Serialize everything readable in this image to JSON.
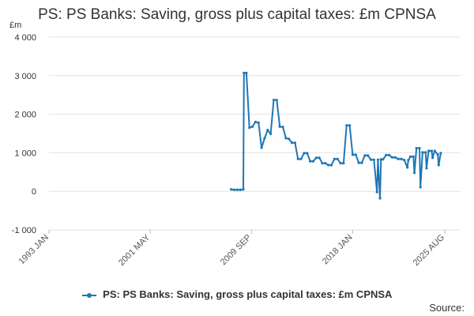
{
  "chart_data": {
    "type": "line",
    "title": "PS: PS Banks: Saving, gross plus capital taxes: £m CPNSA",
    "ylabel": "£m",
    "ylim": [
      -1000,
      4000
    ],
    "yticks": [
      -1000,
      0,
      1000,
      2000,
      3000,
      4000
    ],
    "ytick_labels": [
      "-1 000",
      "0",
      "1 000",
      "2 000",
      "3 000",
      "4 000"
    ],
    "xlim": [
      1993.0,
      2025.58
    ],
    "xticks": [
      1993.0,
      2001.33,
      2009.67,
      2018.0,
      2025.58
    ],
    "xtick_labels": [
      "1993 JAN",
      "2001 MAY",
      "2009 SEP",
      "2018 JAN",
      "2025 AUG"
    ],
    "grid": true,
    "legend": "bottom",
    "color": "#1f77b4",
    "series": [
      {
        "name": "PS: PS Banks: Saving, gross plus capital taxes: £m CPNSA",
        "x": [
          2008.0,
          2008.25,
          2008.5,
          2008.75,
          2009.0,
          2009.05,
          2009.25,
          2009.5,
          2009.75,
          2010.0,
          2010.25,
          2010.5,
          2010.75,
          2011.0,
          2011.25,
          2011.5,
          2011.75,
          2012.0,
          2012.25,
          2012.5,
          2012.75,
          2013.0,
          2013.25,
          2013.5,
          2013.75,
          2014.0,
          2014.25,
          2014.5,
          2014.75,
          2015.0,
          2015.25,
          2015.5,
          2015.75,
          2016.0,
          2016.25,
          2016.5,
          2016.75,
          2017.0,
          2017.25,
          2017.5,
          2017.75,
          2018.0,
          2018.25,
          2018.5,
          2018.75,
          2019.0,
          2019.25,
          2019.5,
          2019.75,
          2020.0,
          2020.08,
          2020.25,
          2020.33,
          2020.5,
          2020.75,
          2021.0,
          2021.25,
          2021.5,
          2021.75,
          2022.0,
          2022.25,
          2022.5,
          2022.58,
          2022.75,
          2023.0,
          2023.08,
          2023.25,
          2023.5,
          2023.58,
          2023.75,
          2024.0,
          2024.08,
          2024.25,
          2024.5,
          2024.58,
          2024.75,
          2025.0,
          2025.08,
          2025.25
        ],
        "y": [
          50,
          40,
          40,
          40,
          50,
          3070,
          3070,
          1650,
          1680,
          1800,
          1780,
          1130,
          1380,
          1590,
          1490,
          2370,
          2370,
          1680,
          1670,
          1380,
          1360,
          1260,
          1260,
          840,
          840,
          990,
          990,
          780,
          780,
          870,
          870,
          730,
          730,
          680,
          680,
          840,
          840,
          730,
          730,
          1710,
          1710,
          950,
          950,
          740,
          740,
          930,
          930,
          820,
          820,
          -20,
          820,
          -180,
          830,
          830,
          940,
          940,
          880,
          880,
          840,
          840,
          810,
          620,
          810,
          900,
          900,
          480,
          1120,
          1120,
          110,
          1010,
          1010,
          600,
          1050,
          1050,
          870,
          1050,
          960,
          680,
          990
        ]
      }
    ]
  },
  "source_label": "Source:"
}
